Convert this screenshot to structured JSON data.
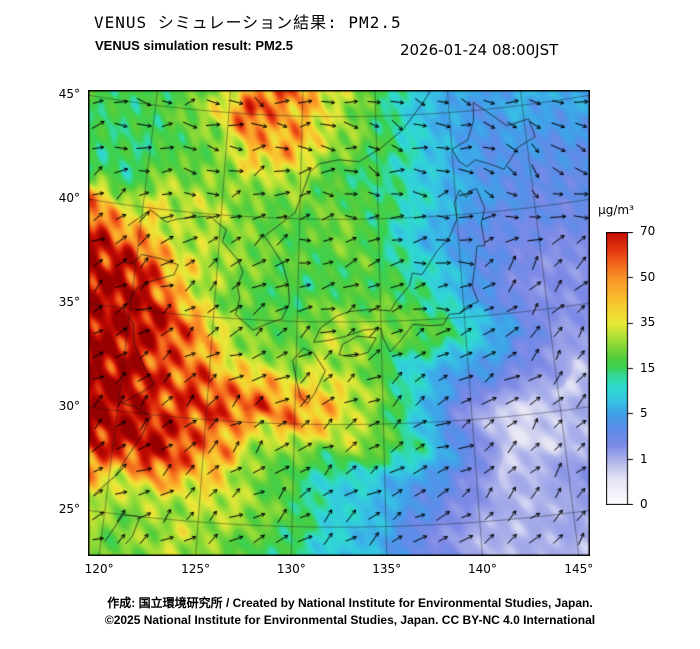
{
  "header": {
    "title_jp": "VENUS シミュレーション結果: PM2.5",
    "title_en": "VENUS simulation result: PM2.5",
    "datetime": "2026-01-24 08:00JST"
  },
  "footer": {
    "credit": "作成: 国立環境研究所 / Created by National Institute for Environmental Studies, Japan.",
    "license": "©2025 National Institute for Environmental Studies, Japan. CC BY-NC 4.0 International"
  },
  "chart_data": {
    "type": "heatmap",
    "title": "VENUS simulation result: PM2.5",
    "title_jp": "VENUS シミュレーション結果: PM2.5",
    "timestamp": "2026-01-24 08:00JST",
    "variable": "PM2.5 concentration with wind vectors",
    "projection": {
      "type": "equidistant_conic",
      "center_lon": 132.5,
      "standard_parallels": [
        30,
        40
      ],
      "top_lat": 46.3
    },
    "lon_range": [
      119,
      147
    ],
    "lat_range": [
      23.6,
      46.3
    ],
    "axes": {
      "x_ticks": [
        {
          "deg": 120,
          "label": "120°"
        },
        {
          "deg": 125,
          "label": "125°"
        },
        {
          "deg": 130,
          "label": "130°"
        },
        {
          "deg": 135,
          "label": "135°"
        },
        {
          "deg": 140,
          "label": "140°"
        },
        {
          "deg": 145,
          "label": "145°"
        }
      ],
      "y_ticks": [
        {
          "deg": 45,
          "label": "45°"
        },
        {
          "deg": 40,
          "label": "40°"
        },
        {
          "deg": 35,
          "label": "35°"
        },
        {
          "deg": 30,
          "label": "30°"
        },
        {
          "deg": 25,
          "label": "25°"
        }
      ]
    },
    "colorbar": {
      "unit": "µg/m³",
      "tick_values": [
        0,
        1,
        5,
        15,
        35,
        50,
        70
      ],
      "tick_labels": [
        "0",
        "1",
        "5",
        "15",
        "35",
        "50",
        "70"
      ]
    },
    "colormap": [
      [
        0,
        "#ffffff"
      ],
      [
        0.6,
        "#e2e2f4"
      ],
      [
        1,
        "#aab0ea"
      ],
      [
        2.2,
        "#7e8ae6"
      ],
      [
        3.5,
        "#5f8ce8"
      ],
      [
        5,
        "#41a0ea"
      ],
      [
        8,
        "#35c6e2"
      ],
      [
        11,
        "#2fd9cf"
      ],
      [
        14,
        "#35d789"
      ],
      [
        15,
        "#39d254"
      ],
      [
        20,
        "#55cd3c"
      ],
      [
        27,
        "#9ddd36"
      ],
      [
        35,
        "#e9e838"
      ],
      [
        42,
        "#f9c52e"
      ],
      [
        50,
        "#f99328"
      ],
      [
        57,
        "#f2601b"
      ],
      [
        63,
        "#e1330f"
      ],
      [
        70,
        "#c60d04"
      ],
      [
        82,
        "#970000"
      ]
    ],
    "pm25_field": {
      "lons": [
        119,
        121,
        123,
        125,
        127,
        129,
        131,
        133,
        135,
        137,
        139,
        141,
        143,
        145,
        147
      ],
      "lats": [
        46,
        44,
        42,
        40,
        38,
        36,
        34,
        32,
        30,
        28,
        26,
        24
      ],
      "values_ugm3": [
        [
          18,
          15,
          20,
          35,
          65,
          50,
          38,
          28,
          20,
          12,
          8,
          6,
          5,
          8,
          6
        ],
        [
          16,
          18,
          22,
          26,
          40,
          48,
          36,
          24,
          16,
          10,
          7,
          5,
          4,
          6,
          5
        ],
        [
          15,
          18,
          20,
          24,
          30,
          28,
          22,
          18,
          14,
          10,
          7,
          5,
          4,
          3,
          4
        ],
        [
          45,
          38,
          28,
          24,
          20,
          18,
          20,
          26,
          18,
          12,
          6,
          4,
          3,
          3,
          3
        ],
        [
          65,
          55,
          40,
          28,
          24,
          20,
          18,
          20,
          15,
          12,
          8,
          4,
          3,
          2,
          2
        ],
        [
          75,
          65,
          45,
          30,
          22,
          18,
          16,
          18,
          20,
          18,
          10,
          5,
          3,
          2,
          2
        ],
        [
          78,
          70,
          50,
          35,
          25,
          22,
          25,
          28,
          25,
          20,
          12,
          6,
          3,
          2,
          2
        ],
        [
          80,
          75,
          60,
          45,
          40,
          45,
          40,
          30,
          22,
          12,
          6,
          3,
          1.5,
          0.7,
          1.5
        ],
        [
          80,
          78,
          70,
          65,
          60,
          55,
          45,
          30,
          18,
          8,
          4,
          1.5,
          0.6,
          0.8,
          1
        ],
        [
          70,
          65,
          55,
          40,
          30,
          25,
          20,
          15,
          10,
          5,
          3,
          0.8,
          0.6,
          0.8,
          1
        ],
        [
          40,
          35,
          30,
          28,
          25,
          18,
          14,
          10,
          8,
          4,
          2,
          1,
          1,
          2,
          2
        ],
        [
          25,
          22,
          25,
          30,
          22,
          15,
          10,
          8,
          6,
          3,
          2,
          1,
          1,
          1,
          1
        ]
      ]
    },
    "wind_field": {
      "lons": [
        119,
        123,
        127,
        131,
        135,
        139,
        143,
        147
      ],
      "lats": [
        46,
        41.6,
        37.2,
        32.8,
        28.4,
        24
      ],
      "u": [
        [
          1.0,
          1.0,
          0.8,
          1.0,
          1.0,
          0.7,
          0.9,
          1.0
        ],
        [
          0.8,
          1.0,
          0.9,
          1.0,
          0.8,
          1.0,
          0.6,
          0.8
        ],
        [
          0.9,
          1.0,
          0.7,
          1.0,
          0.9,
          0.8,
          0.5,
          0.7
        ],
        [
          1.0,
          0.9,
          1.0,
          0.8,
          1.0,
          0.7,
          0.9,
          0.6
        ],
        [
          0.9,
          1.0,
          0.9,
          1.0,
          0.8,
          1.0,
          0.7,
          0.9
        ],
        [
          1.0,
          0.9,
          1.0,
          0.8,
          1.0,
          0.9,
          1.0,
          0.8
        ]
      ],
      "v": [
        [
          -0.2,
          0.3,
          -0.5,
          0.2,
          -0.3,
          -0.6,
          0.2,
          -0.2
        ],
        [
          0.4,
          -0.3,
          0.5,
          0.1,
          -0.4,
          0.3,
          -0.7,
          -0.5
        ],
        [
          0.6,
          0.4,
          0.7,
          0.3,
          0.5,
          -0.2,
          0.8,
          0.5
        ],
        [
          0.6,
          0.8,
          0.5,
          0.7,
          0.4,
          0.7,
          0.5,
          0.8
        ],
        [
          0.8,
          0.7,
          0.9,
          0.6,
          0.8,
          0.5,
          0.9,
          0.7
        ],
        [
          0.5,
          0.8,
          0.6,
          0.9,
          0.7,
          0.6,
          0.8,
          0.9
        ]
      ]
    },
    "coastlines": [
      [
        [
          119.3,
          25.8
        ],
        [
          120.3,
          26.8
        ],
        [
          120.9,
          27.9
        ],
        [
          121.5,
          28.9
        ],
        [
          121.9,
          29.9
        ],
        [
          121.0,
          30.3
        ],
        [
          120.2,
          30.4
        ],
        [
          121.2,
          31.0
        ],
        [
          121.9,
          31.5
        ],
        [
          121.2,
          32.3
        ],
        [
          120.5,
          33.3
        ],
        [
          120.3,
          34.3
        ],
        [
          119.6,
          34.9
        ],
        [
          120.3,
          36.1
        ],
        [
          120.9,
          36.4
        ],
        [
          122.4,
          36.9
        ],
        [
          122.6,
          37.4
        ],
        [
          121.5,
          37.6
        ],
        [
          120.3,
          37.7
        ],
        [
          119.8,
          37.2
        ],
        [
          119.2,
          37.2
        ]
      ],
      [
        [
          119.2,
          39.0
        ],
        [
          120.5,
          39.9
        ],
        [
          121.6,
          39.4
        ],
        [
          122.2,
          39.6
        ],
        [
          123.5,
          39.8
        ],
        [
          124.3,
          39.9
        ],
        [
          124.8,
          39.6
        ]
      ],
      [
        [
          124.8,
          39.6
        ],
        [
          125.4,
          39.3
        ],
        [
          125.2,
          38.7
        ],
        [
          126.2,
          37.9
        ],
        [
          126.6,
          37.3
        ],
        [
          126.3,
          36.6
        ],
        [
          126.5,
          36.0
        ],
        [
          126.3,
          35.2
        ],
        [
          127.4,
          34.5
        ],
        [
          128.4,
          34.9
        ],
        [
          129.1,
          35.1
        ],
        [
          129.5,
          35.9
        ],
        [
          129.4,
          36.8
        ],
        [
          129.0,
          37.8
        ],
        [
          128.3,
          38.6
        ],
        [
          127.8,
          39.1
        ],
        [
          128.6,
          39.6
        ],
        [
          129.7,
          40.3
        ],
        [
          130.6,
          42.3
        ],
        [
          131.2,
          42.7
        ],
        [
          132.5,
          42.9
        ],
        [
          133.8,
          42.8
        ],
        [
          135.2,
          43.4
        ],
        [
          136.8,
          44.3
        ],
        [
          138.3,
          45.6
        ],
        [
          139.0,
          46.3
        ]
      ],
      [
        [
          130.4,
          33.7
        ],
        [
          129.8,
          33.1
        ],
        [
          130.0,
          32.3
        ],
        [
          130.3,
          31.3
        ],
        [
          130.7,
          31.0
        ],
        [
          131.1,
          31.5
        ],
        [
          131.7,
          32.6
        ],
        [
          131.0,
          33.5
        ],
        [
          130.4,
          33.7
        ]
      ],
      [
        [
          132.7,
          33.9
        ],
        [
          132.5,
          33.4
        ],
        [
          133.3,
          33.3
        ],
        [
          134.2,
          33.5
        ],
        [
          134.7,
          34.2
        ],
        [
          133.6,
          34.3
        ],
        [
          132.7,
          33.9
        ]
      ],
      [
        [
          131.0,
          34.0
        ],
        [
          131.9,
          34.1
        ],
        [
          132.9,
          34.3
        ],
        [
          134.0,
          34.6
        ],
        [
          135.0,
          34.65
        ],
        [
          135.1,
          34.2
        ],
        [
          135.5,
          33.5
        ],
        [
          136.2,
          34.1
        ],
        [
          136.9,
          34.8
        ],
        [
          137.9,
          34.7
        ],
        [
          138.7,
          34.7
        ],
        [
          139.1,
          35.2
        ],
        [
          139.8,
          35.2
        ],
        [
          140.1,
          35.5
        ],
        [
          140.9,
          35.7
        ],
        [
          140.6,
          36.5
        ],
        [
          140.9,
          37.5
        ],
        [
          141.1,
          38.4
        ],
        [
          141.6,
          38.4
        ],
        [
          141.5,
          39.5
        ],
        [
          141.8,
          40.2
        ],
        [
          141.4,
          41.2
        ],
        [
          140.9,
          41.1
        ],
        [
          140.7,
          40.8
        ],
        [
          140.3,
          41.2
        ],
        [
          139.9,
          40.6
        ],
        [
          140.0,
          39.8
        ],
        [
          139.4,
          38.9
        ],
        [
          138.6,
          38.3
        ],
        [
          137.6,
          37.2
        ],
        [
          137.0,
          37.3
        ],
        [
          136.8,
          36.7
        ],
        [
          135.9,
          35.9
        ],
        [
          135.6,
          35.5
        ],
        [
          134.4,
          35.6
        ],
        [
          133.1,
          35.5
        ],
        [
          132.4,
          35.3
        ],
        [
          131.4,
          34.7
        ],
        [
          131.0,
          34.0
        ]
      ],
      [
        [
          140.4,
          42.6
        ],
        [
          140.0,
          43.2
        ],
        [
          141.1,
          43.6
        ],
        [
          141.6,
          44.5
        ],
        [
          141.7,
          45.4
        ],
        [
          142.7,
          44.8
        ],
        [
          143.8,
          44.1
        ],
        [
          145.3,
          44.3
        ],
        [
          145.6,
          43.4
        ],
        [
          144.4,
          43.0
        ],
        [
          143.3,
          42.0
        ],
        [
          142.5,
          42.3
        ],
        [
          141.5,
          42.6
        ],
        [
          140.9,
          42.3
        ],
        [
          140.4,
          42.6
        ]
      ],
      [
        [
          120.2,
          23.6
        ],
        [
          121.0,
          25.0
        ],
        [
          121.9,
          25.0
        ],
        [
          121.6,
          24.0
        ],
        [
          121.3,
          23.6
        ]
      ],
      [
        [
          141.9,
          46.5
        ],
        [
          142.1,
          46.1
        ],
        [
          142.4,
          46.5
        ]
      ]
    ]
  }
}
